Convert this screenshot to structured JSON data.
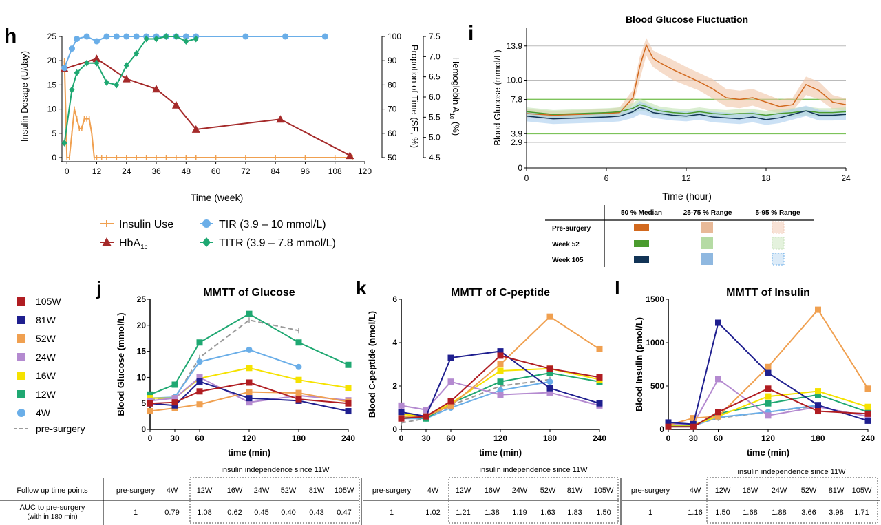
{
  "panel_h": {
    "letter": "h",
    "xlabel": "Time (week)",
    "ylabel_left": "Insulin Dosage (U/day)",
    "ylabel_mid": "Propotion of Time (SE, %)",
    "ylabel_right_main": "Hemoglobin A",
    "ylabel_right_sub": "1c",
    "ylabel_right_tail": " (%)"
  },
  "panel_i": {
    "letter": "i",
    "title": "Blood Glucose Fluctuation",
    "xlabel": "Time (hour)",
    "ylabel": "Blood Glucose (mmol/L)",
    "legend_table": {
      "columns": [
        "50 % Median",
        "25-75 % Range",
        "5-95 % Range"
      ],
      "rows": [
        "Pre-surgery",
        "Week 52",
        "Week 105"
      ]
    }
  },
  "panel_j": {
    "letter": "j"
  },
  "panel_k": {
    "letter": "k"
  },
  "panel_l": {
    "letter": "l"
  },
  "mmtt_legend": {
    "entries": [
      {
        "label": "105W",
        "color": "#b01d22"
      },
      {
        "label": "81W",
        "color": "#1f1f8f"
      },
      {
        "label": "52W",
        "color": "#f0a050"
      },
      {
        "label": "24W",
        "color": "#b48ad0"
      },
      {
        "label": "16W",
        "color": "#f5e200"
      },
      {
        "label": "12W",
        "color": "#1fa872"
      },
      {
        "label": "4W",
        "color": "#6aaee8"
      },
      {
        "label": "pre-surgery",
        "color": "#9a9a9a"
      }
    ]
  },
  "auc_table": {
    "row_headers": [
      "Follow up time points",
      "AUC to pre-surgery",
      "(with in 180 min)"
    ],
    "note": "insulin independence since 11W",
    "header_cells": [
      "pre-surgery",
      "4W",
      "12W",
      "16W",
      "24W",
      "52W",
      "81W",
      "105W"
    ],
    "glucose": [
      "1",
      "0.79",
      "1.08",
      "0.62",
      "0.45",
      "0.40",
      "0.43",
      "0.47"
    ],
    "cpeptide": [
      "1",
      "1.02",
      "1.21",
      "1.38",
      "1.19",
      "1.63",
      "1.83",
      "1.50"
    ],
    "insulin": [
      "1",
      "1.16",
      "1.50",
      "1.68",
      "1.88",
      "3.66",
      "3.98",
      "1.71"
    ]
  },
  "chart_data": [
    {
      "type": "line",
      "panel": "h",
      "xlabel": "Time (week)",
      "xlim": [
        -2,
        120
      ],
      "xticks": [
        0,
        12,
        24,
        36,
        48,
        60,
        72,
        84,
        96,
        108,
        120
      ],
      "axes": {
        "left": {
          "label": "Insulin Dosage (U/day)",
          "ylim": [
            0,
            25
          ],
          "ticks": [
            0,
            5,
            10,
            15,
            20,
            25
          ]
        },
        "mid": {
          "label": "Propotion of Time (SE, %)",
          "ylim": [
            50,
            100
          ],
          "ticks": [
            50,
            60,
            70,
            80,
            90,
            100
          ]
        },
        "right": {
          "label": "Hemoglobin A1c (%)",
          "ylim": [
            4.5,
            7.5
          ],
          "ticks": [
            4.5,
            5.0,
            5.5,
            6.0,
            6.5,
            7.0,
            7.5
          ]
        }
      },
      "series": [
        {
          "name": "Insulin Use",
          "axis": "left",
          "color": "#f0a050",
          "marker": "tick",
          "x": [
            -1,
            0,
            1,
            2,
            3,
            4,
            5,
            6,
            7,
            8,
            9,
            10,
            11,
            12,
            14,
            16,
            20,
            24,
            28,
            32,
            36,
            40,
            44,
            48,
            52,
            60,
            72,
            84,
            96,
            108,
            115
          ],
          "y": [
            20,
            0,
            0,
            5,
            10,
            8,
            6,
            6,
            8,
            8,
            8,
            5,
            0,
            0,
            0,
            0,
            0,
            0,
            0,
            0,
            0,
            0,
            0,
            0,
            0,
            0,
            0,
            0,
            0,
            0,
            0
          ]
        },
        {
          "name": "HbA1c",
          "axis": "right",
          "color": "#a52a2a",
          "marker": "triangle",
          "x": [
            -1,
            12,
            24,
            36,
            44,
            52,
            86,
            114
          ],
          "y": [
            6.7,
            6.95,
            6.45,
            6.2,
            5.8,
            5.2,
            5.45,
            4.55
          ]
        },
        {
          "name": "TIR (3.9 – 10 mmol/L)",
          "axis": "mid",
          "color": "#6aaee8",
          "marker": "circle",
          "x": [
            -1,
            2,
            4,
            8,
            12,
            16,
            20,
            24,
            28,
            32,
            36,
            40,
            44,
            48,
            52,
            72,
            88,
            104
          ],
          "y": [
            87,
            95,
            99,
            100,
            98,
            100,
            100,
            100,
            100,
            100,
            100,
            100,
            100,
            100,
            100,
            100,
            100,
            100
          ]
        },
        {
          "name": "TITR (3.9 – 7.8 mmol/L)",
          "axis": "mid",
          "color": "#1fa872",
          "marker": "diamond",
          "x": [
            -1,
            2,
            4,
            8,
            12,
            16,
            20,
            24,
            28,
            32,
            36,
            40,
            44,
            48,
            52
          ],
          "y": [
            56,
            78,
            85,
            89,
            89,
            81,
            80,
            88,
            93,
            99,
            99,
            100,
            100,
            98,
            99
          ]
        }
      ]
    },
    {
      "type": "area",
      "panel": "i",
      "title": "Blood Glucose Fluctuation",
      "xlabel": "Time (hour)",
      "ylabel": "Blood Glucose (mmol/L)",
      "xlim": [
        0,
        24
      ],
      "ylim": [
        0,
        16
      ],
      "xticks": [
        0,
        6,
        12,
        18,
        24
      ],
      "yticks": [
        0,
        2.9,
        3.9,
        7.8,
        10.0,
        13.9
      ],
      "reference_lines": [
        {
          "y": 3.9,
          "color": "#7dc35a"
        },
        {
          "y": 7.8,
          "color": "#7dc35a"
        },
        {
          "y": 2.9,
          "color": "#bbbbbb"
        },
        {
          "y": 10.0,
          "color": "#bbbbbb"
        },
        {
          "y": 13.9,
          "color": "#bbbbbb"
        }
      ],
      "x": [
        0,
        2,
        4,
        6,
        7,
        8,
        8.5,
        9,
        9.5,
        10,
        11,
        12,
        13,
        14,
        15,
        16,
        17,
        18,
        19,
        20,
        21,
        22,
        23,
        24
      ],
      "series": [
        {
          "name": "Pre-surgery",
          "color": "#d2691e",
          "median": [
            6.2,
            6.0,
            6.1,
            6.2,
            6.3,
            8.0,
            11.5,
            14.0,
            12.5,
            12.0,
            11.2,
            10.5,
            9.8,
            9.0,
            8.0,
            7.8,
            8.0,
            7.5,
            7.0,
            7.2,
            9.5,
            8.8,
            7.5,
            7.2
          ],
          "q25": [
            5.7,
            5.5,
            5.6,
            5.7,
            5.8,
            7.2,
            10.0,
            12.8,
            11.5,
            11.0,
            10.0,
            9.4,
            8.8,
            7.9,
            7.0,
            6.8,
            7.1,
            6.6,
            6.2,
            6.5,
            8.3,
            7.8,
            6.7,
            6.5
          ],
          "q75": [
            6.7,
            6.5,
            6.6,
            6.7,
            6.9,
            8.9,
            12.6,
            14.8,
            13.4,
            13.0,
            12.3,
            11.5,
            10.8,
            10.1,
            9.0,
            8.8,
            9.0,
            8.4,
            7.8,
            8.0,
            10.4,
            9.8,
            8.3,
            7.9
          ]
        },
        {
          "name": "Week 52",
          "color": "#4a9b2e",
          "median": [
            6.4,
            6.1,
            6.2,
            6.3,
            6.4,
            6.8,
            7.2,
            7.0,
            6.7,
            6.5,
            6.3,
            6.2,
            6.4,
            6.2,
            6.1,
            6.2,
            6.2,
            6.0,
            6.2,
            6.3,
            6.5,
            6.3,
            6.3,
            6.4
          ],
          "q25": [
            5.9,
            5.6,
            5.7,
            5.8,
            5.9,
            6.2,
            6.5,
            6.4,
            6.1,
            6.0,
            5.8,
            5.7,
            5.9,
            5.7,
            5.6,
            5.7,
            5.7,
            5.5,
            5.7,
            5.8,
            6.0,
            5.8,
            5.8,
            5.9
          ],
          "q75": [
            6.9,
            6.6,
            6.7,
            6.8,
            6.9,
            7.4,
            7.9,
            7.6,
            7.3,
            7.0,
            6.8,
            6.7,
            6.9,
            6.7,
            6.6,
            6.7,
            6.7,
            6.5,
            6.7,
            6.8,
            7.0,
            6.8,
            6.8,
            6.9
          ]
        },
        {
          "name": "Week 105",
          "color": "#123456",
          "median": [
            5.9,
            5.6,
            5.7,
            5.8,
            5.9,
            6.4,
            6.9,
            6.7,
            6.3,
            6.2,
            6.0,
            5.9,
            6.1,
            5.8,
            5.7,
            5.6,
            5.8,
            5.5,
            5.7,
            6.1,
            6.5,
            6.0,
            6.0,
            6.1
          ],
          "q25": [
            5.3,
            5.0,
            5.1,
            5.2,
            5.3,
            5.7,
            6.1,
            6.0,
            5.7,
            5.6,
            5.4,
            5.3,
            5.5,
            5.2,
            5.1,
            5.0,
            5.2,
            4.9,
            5.1,
            5.5,
            5.9,
            5.4,
            5.4,
            5.5
          ],
          "q75": [
            6.4,
            6.1,
            6.2,
            6.3,
            6.4,
            7.0,
            7.6,
            7.3,
            6.9,
            6.7,
            6.5,
            6.4,
            6.6,
            6.4,
            6.3,
            6.2,
            6.4,
            6.1,
            6.3,
            6.7,
            7.1,
            6.6,
            6.5,
            6.6
          ]
        }
      ]
    },
    {
      "type": "line",
      "panel": "j",
      "title": "MMTT of Glucose",
      "xlabel": "time (min)",
      "ylabel": "Blood Glucose (mmol/L)",
      "x": [
        0,
        30,
        60,
        120,
        180,
        240
      ],
      "ylim": [
        0,
        25
      ],
      "yticks": [
        0,
        5,
        10,
        15,
        20,
        25
      ],
      "series": [
        {
          "name": "105W",
          "values": [
            5.0,
            5.2,
            7.3,
            9.0,
            5.8,
            5.0
          ]
        },
        {
          "name": "81W",
          "values": [
            5.0,
            4.6,
            9.2,
            6.0,
            5.5,
            3.5
          ]
        },
        {
          "name": "52W",
          "values": [
            3.5,
            4.1,
            4.8,
            7.2,
            7.0,
            5.3
          ]
        },
        {
          "name": "24W",
          "values": [
            5.5,
            6.0,
            10.0,
            5.2,
            6.5,
            5.6
          ]
        },
        {
          "name": "16W",
          "values": [
            6.0,
            6.0,
            9.8,
            11.8,
            9.5,
            8.0
          ]
        },
        {
          "name": "12W",
          "values": [
            6.7,
            8.6,
            16.7,
            22.2,
            16.7,
            12.4
          ]
        },
        {
          "name": "4W",
          "values": [
            6.0,
            6.2,
            13.0,
            15.3,
            12.0,
            null
          ]
        },
        {
          "name": "pre-surgery",
          "values": [
            5.8,
            6.0,
            13.8,
            21.0,
            19.0,
            null
          ]
        }
      ]
    },
    {
      "type": "line",
      "panel": "k",
      "title": "MMTT of C-peptide",
      "xlabel": "time (min)",
      "ylabel": "Blood C-peptide (nmol/L)",
      "x": [
        0,
        30,
        60,
        120,
        180,
        240
      ],
      "ylim": [
        0,
        6
      ],
      "yticks": [
        0,
        2,
        4,
        6
      ],
      "series": [
        {
          "name": "105W",
          "values": [
            0.5,
            0.6,
            1.3,
            3.4,
            2.8,
            2.4
          ]
        },
        {
          "name": "81W",
          "values": [
            0.8,
            0.6,
            3.3,
            3.6,
            1.9,
            1.2
          ]
        },
        {
          "name": "52W",
          "values": [
            0.6,
            0.6,
            1.1,
            3.0,
            5.2,
            3.7
          ]
        },
        {
          "name": "24W",
          "values": [
            1.1,
            0.9,
            2.2,
            1.6,
            1.7,
            1.1
          ]
        },
        {
          "name": "16W",
          "values": [
            0.7,
            0.6,
            1.2,
            2.7,
            2.8,
            2.3
          ]
        },
        {
          "name": "12W",
          "values": [
            0.6,
            0.5,
            1.2,
            2.2,
            2.6,
            2.2
          ]
        },
        {
          "name": "4W",
          "values": [
            0.5,
            0.5,
            1.0,
            1.8,
            2.2,
            null
          ]
        },
        {
          "name": "pre-surgery",
          "values": [
            0.3,
            0.5,
            1.1,
            2.0,
            2.3,
            null
          ]
        }
      ]
    },
    {
      "type": "line",
      "panel": "l",
      "title": "MMTT of Insulin",
      "xlabel": "time (min)",
      "ylabel": "Blood Insulin (pmol/L)",
      "x": [
        0,
        30,
        60,
        120,
        180,
        240
      ],
      "ylim": [
        0,
        1500
      ],
      "yticks": [
        0,
        500,
        1000,
        1500
      ],
      "series": [
        {
          "name": "105W",
          "values": [
            30,
            30,
            200,
            470,
            210,
            180
          ]
        },
        {
          "name": "81W",
          "values": [
            80,
            60,
            1230,
            650,
            280,
            100
          ]
        },
        {
          "name": "52W",
          "values": [
            50,
            130,
            150,
            720,
            1380,
            470
          ]
        },
        {
          "name": "24W",
          "values": [
            60,
            60,
            580,
            160,
            260,
            150
          ]
        },
        {
          "name": "16W",
          "values": [
            50,
            50,
            150,
            380,
            440,
            260
          ]
        },
        {
          "name": "12W",
          "values": [
            40,
            40,
            180,
            300,
            400,
            200
          ]
        },
        {
          "name": "4W",
          "values": [
            40,
            40,
            140,
            200,
            280,
            null
          ]
        },
        {
          "name": "pre-surgery",
          "values": [
            50,
            50,
            130,
            200,
            270,
            null
          ]
        }
      ]
    }
  ]
}
